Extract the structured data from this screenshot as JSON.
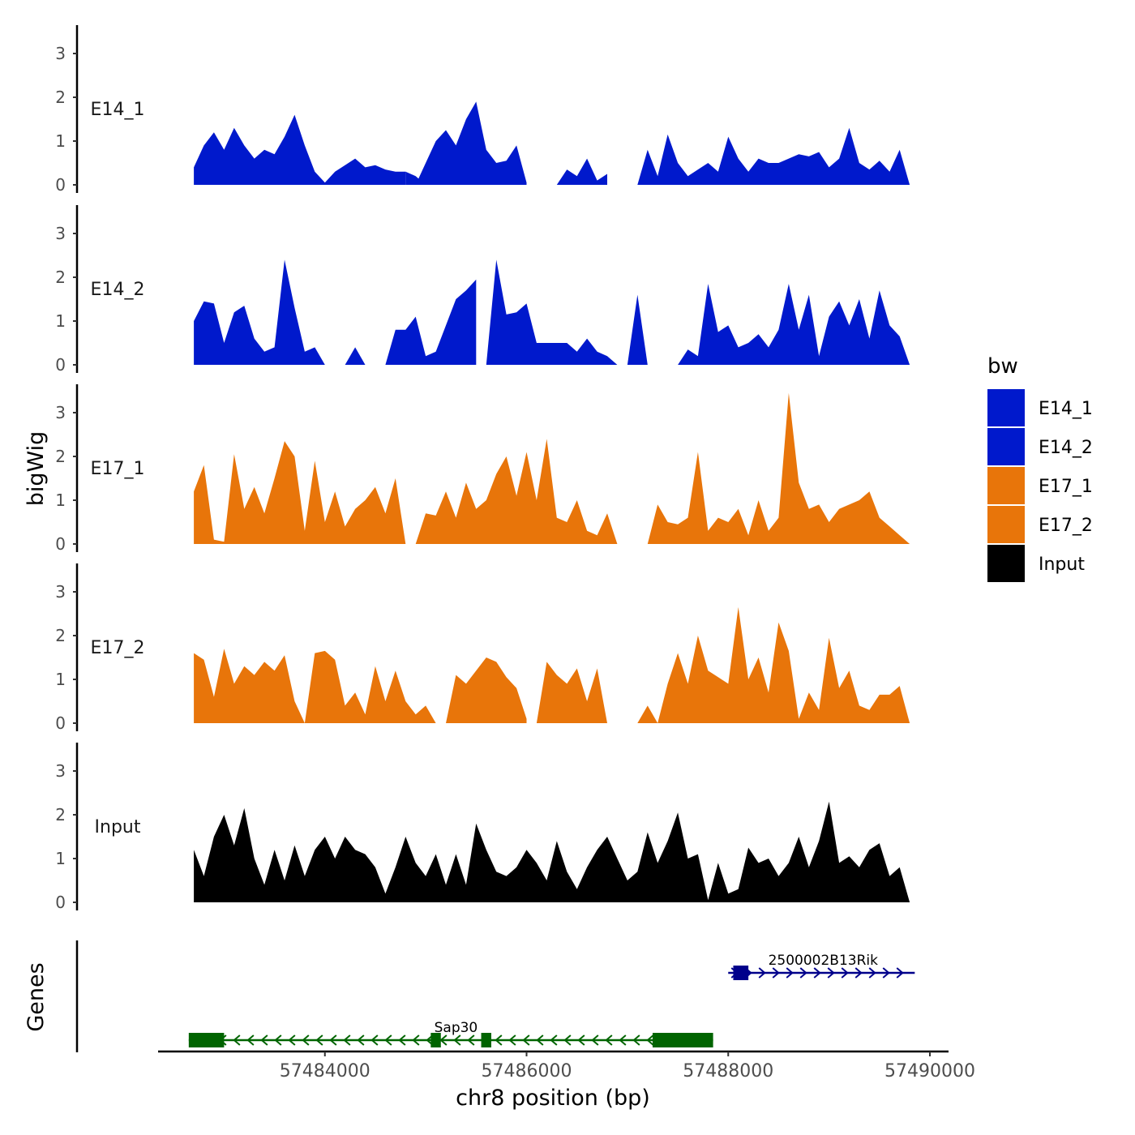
{
  "chart_data": {
    "type": "area",
    "chromosome": "chr8",
    "xlabel": "chr8 position (bp)",
    "ylabel": "bigWig",
    "genes_label": "Genes",
    "xlim": [
      57482400,
      57490300
    ],
    "x_ticks": [
      57484000,
      57486000,
      57488000,
      57490000
    ],
    "x_tick_labels": [
      "57484000",
      "57486000",
      "57488000",
      "57490000"
    ],
    "y_ticks": [
      0,
      1,
      2,
      3
    ],
    "y_tick_labels": [
      "0",
      "1",
      "2",
      "3"
    ],
    "ylim": [
      0,
      3.6
    ],
    "legend": {
      "title": "bw",
      "position": "right",
      "entries": [
        {
          "label": "E14_1",
          "color": "#0019CC"
        },
        {
          "label": "E14_2",
          "color": "#0019CC"
        },
        {
          "label": "E17_1",
          "color": "#E8750A"
        },
        {
          "label": "E17_2",
          "color": "#E8750A"
        },
        {
          "label": "Input",
          "color": "#000000"
        }
      ]
    },
    "series": [
      {
        "name": "E14_1",
        "color": "#0019CC",
        "segments": [
          {
            "x": [
              57482700,
              57482800,
              57482900,
              57483000,
              57483100,
              57483200,
              57483300,
              57483400,
              57483500,
              57483600,
              57483700,
              57483800,
              57483900,
              57484000,
              57484100,
              57484200,
              57484300,
              57484400,
              57484500,
              57484600,
              57484700,
              57484800
            ],
            "y": [
              0.4,
              0.9,
              1.2,
              0.8,
              1.3,
              0.9,
              0.6,
              0.8,
              0.7,
              1.1,
              1.6,
              0.9,
              0.3,
              0.05,
              0.3,
              0.45,
              0.6,
              0.4,
              0.45,
              0.35,
              0.3,
              0.3
            ]
          },
          {
            "x": [
              57484800,
              57484900,
              57485000,
              57485100,
              57485200,
              57485300,
              57485400,
              57485500,
              57485600,
              57485700,
              57485800,
              57485900,
              57486000
            ],
            "y": [
              0.3,
              0.2,
              0.0,
              0.0,
              0.0,
              0.0,
              0.0,
              0.0,
              0.0,
              0.0,
              0.0,
              0.0,
              0.0
            ]
          },
          {
            "x": [
              57484900,
              57485000,
              57485100,
              57485200,
              57485300,
              57485400,
              57485500,
              57485600,
              57485700,
              57485800,
              57485900,
              57486000
            ],
            "y": [
              0.0,
              0.5,
              1.0,
              1.25,
              0.9,
              1.5,
              1.9,
              0.8,
              0.5,
              0.55,
              0.9,
              0.05
            ]
          },
          {
            "x": [
              57486300,
              57486400,
              57486500,
              57486600,
              57486700,
              57486800
            ],
            "y": [
              0.0,
              0.35,
              0.2,
              0.6,
              0.1,
              0.25
            ]
          },
          {
            "x": [
              57487100,
              57487200,
              57487300,
              57487400,
              57487500,
              57487600,
              57487700,
              57487800,
              57487900,
              57488000,
              57488100,
              57488200,
              57488300,
              57488400,
              57488500,
              57488600,
              57488700,
              57488800,
              57488900,
              57489000,
              57489100,
              57489200,
              57489300,
              57489400,
              57489500,
              57489600,
              57489700,
              57489800
            ],
            "y": [
              0.0,
              0.8,
              0.2,
              1.15,
              0.5,
              0.2,
              0.35,
              0.5,
              0.3,
              1.1,
              0.6,
              0.3,
              0.6,
              0.5,
              0.5,
              0.6,
              0.7,
              0.65,
              0.75,
              0.4,
              0.6,
              1.3,
              0.5,
              0.35,
              0.55,
              0.3,
              0.8,
              0.0
            ]
          }
        ]
      },
      {
        "name": "E14_2",
        "color": "#0019CC",
        "segments": [
          {
            "x": [
              57482700,
              57482800,
              57482900,
              57483000,
              57483100,
              57483200,
              57483300,
              57483400,
              57483500,
              57483600,
              57483700,
              57483800,
              57483900,
              57484000
            ],
            "y": [
              1.0,
              1.45,
              1.4,
              0.5,
              1.2,
              1.35,
              0.6,
              0.3,
              0.4,
              2.4,
              1.3,
              0.3,
              0.4,
              0.0
            ]
          },
          {
            "x": [
              57484200,
              57484300,
              57484400
            ],
            "y": [
              0.0,
              0.4,
              0.0
            ]
          },
          {
            "x": [
              57484600,
              57484700,
              57484800,
              57484900,
              57485000,
              57485100,
              57485200,
              57485300,
              57485400,
              57485500
            ],
            "y": [
              0.0,
              0.8,
              0.8,
              1.1,
              0.2,
              0.3,
              0.9,
              1.5,
              1.7,
              1.95
            ]
          },
          {
            "x": [
              57485600,
              57485700,
              57485800,
              57485900,
              57486000,
              57486100,
              57486200,
              57486300,
              57486400,
              57486500,
              57486600,
              57486700,
              57486800,
              57486900
            ],
            "y": [
              0.0,
              2.4,
              1.15,
              1.2,
              1.4,
              0.5,
              0.5,
              0.5,
              0.5,
              0.3,
              0.6,
              0.3,
              0.2,
              0.0
            ]
          },
          {
            "x": [
              57487000,
              57487100,
              57487200
            ],
            "y": [
              0.0,
              1.6,
              0.0
            ]
          },
          {
            "x": [
              57487500,
              57487600,
              57487700,
              57487800,
              57487900,
              57488000,
              57488100,
              57488200,
              57488300,
              57488400,
              57488500,
              57488600,
              57488700,
              57488800,
              57488900,
              57489000,
              57489100,
              57489200,
              57489300,
              57489400,
              57489500,
              57489600,
              57489700,
              57489800
            ],
            "y": [
              0.0,
              0.35,
              0.2,
              1.85,
              0.75,
              0.9,
              0.4,
              0.5,
              0.7,
              0.4,
              0.8,
              1.85,
              0.8,
              1.6,
              0.2,
              1.1,
              1.45,
              0.9,
              1.5,
              0.6,
              1.7,
              0.9,
              0.65,
              0.0
            ]
          }
        ]
      },
      {
        "name": "E17_1",
        "color": "#E8750A",
        "segments": [
          {
            "x": [
              57482700,
              57482800,
              57482900,
              57483000,
              57483100,
              57483200,
              57483300,
              57483400,
              57483500,
              57483600,
              57483700,
              57483800,
              57483900,
              57484000,
              57484100,
              57484200,
              57484300,
              57484400,
              57484500,
              57484600,
              57484700,
              57484800
            ],
            "y": [
              1.2,
              1.8,
              0.1,
              0.05,
              2.05,
              0.8,
              1.3,
              0.7,
              1.5,
              2.35,
              2.0,
              0.3,
              1.9,
              0.5,
              1.2,
              0.4,
              0.8,
              1.0,
              1.3,
              0.7,
              1.5,
              0.0
            ]
          },
          {
            "x": [
              57484900,
              57485000,
              57485100,
              57485200,
              57485300,
              57485400,
              57485500,
              57485600,
              57485700,
              57485800,
              57485900,
              57486000,
              57486100,
              57486200,
              57486300,
              57486400,
              57486500,
              57486600,
              57486700,
              57486800,
              57486900
            ],
            "y": [
              0.0,
              0.7,
              0.65,
              1.2,
              0.6,
              1.4,
              0.8,
              1.0,
              1.6,
              2.0,
              1.1,
              2.1,
              1.0,
              2.4,
              0.6,
              0.5,
              1.0,
              0.3,
              0.2,
              0.7,
              0.0
            ]
          },
          {
            "x": [
              57487200,
              57487300,
              57487400,
              57487500,
              57487600,
              57487700,
              57487800,
              57487900,
              57488000,
              57488100,
              57488200,
              57488300,
              57488400,
              57488500,
              57488600,
              57488700,
              57488800,
              57488900,
              57489000,
              57489100,
              57489200,
              57489300,
              57489400,
              57489500,
              57489600,
              57489700,
              57489800
            ],
            "y": [
              0.0,
              0.9,
              0.5,
              0.45,
              0.6,
              2.1,
              0.3,
              0.6,
              0.5,
              0.8,
              0.2,
              1.0,
              0.3,
              0.6,
              3.45,
              1.4,
              0.8,
              0.9,
              0.5,
              0.8,
              0.9,
              1.0,
              1.2,
              0.6,
              0.4,
              0.2,
              0.0
            ]
          }
        ]
      },
      {
        "name": "E17_2",
        "color": "#E8750A",
        "segments": [
          {
            "x": [
              57482700,
              57482800,
              57482900,
              57483000,
              57483100,
              57483200,
              57483300,
              57483400,
              57483500,
              57483600,
              57483700,
              57483800
            ],
            "y": [
              1.6,
              1.45,
              0.6,
              1.7,
              0.9,
              1.3,
              1.1,
              1.4,
              1.2,
              1.55,
              0.5,
              0.0
            ]
          },
          {
            "x": [
              57483800,
              57483900,
              57484000,
              57484100,
              57484200,
              57484300,
              57484400,
              57484500,
              57484600,
              57484700,
              57484800,
              57484900,
              57485000,
              57485100
            ],
            "y": [
              0.0,
              1.6,
              1.65,
              1.45,
              0.4,
              0.7,
              0.2,
              1.3,
              0.5,
              1.2,
              0.5,
              0.2,
              0.4,
              0.0
            ]
          },
          {
            "x": [
              57485200,
              57485300,
              57485400,
              57485500,
              57485600,
              57485700,
              57485800,
              57485900,
              57486000
            ],
            "y": [
              0.0,
              1.1,
              0.9,
              1.2,
              1.5,
              1.4,
              1.05,
              0.8,
              0.1
            ]
          },
          {
            "x": [
              57486100,
              57486200,
              57486300,
              57486400,
              57486500,
              57486600,
              57486700,
              57486800
            ],
            "y": [
              0.0,
              1.4,
              1.1,
              0.9,
              1.25,
              0.5,
              1.25,
              0.0
            ]
          },
          {
            "x": [
              57487100,
              57487200,
              57487300
            ],
            "y": [
              0.0,
              0.4,
              0.0
            ]
          },
          {
            "x": [
              57487300,
              57487400,
              57487500,
              57487600,
              57487700,
              57487800,
              57487900,
              57488000,
              57488100,
              57488200,
              57488300,
              57488400,
              57488500,
              57488600,
              57488700,
              57488800,
              57488900,
              57489000,
              57489100,
              57489200,
              57489300,
              57489400,
              57489500,
              57489600,
              57489700,
              57489800
            ],
            "y": [
              0.0,
              0.9,
              1.6,
              0.9,
              2.0,
              1.2,
              1.05,
              0.9,
              2.65,
              1.0,
              1.5,
              0.7,
              2.3,
              1.65,
              0.1,
              0.7,
              0.3,
              1.95,
              0.8,
              1.2,
              0.4,
              0.3,
              0.65,
              0.65,
              0.85,
              0.0
            ]
          }
        ]
      },
      {
        "name": "Input",
        "color": "#000000",
        "segments": [
          {
            "x": [
              57482700,
              57482800,
              57482900,
              57483000,
              57483100,
              57483200,
              57483300,
              57483400,
              57483500,
              57483600,
              57483700,
              57483800,
              57483900,
              57484000,
              57484100,
              57484200,
              57484300,
              57484400,
              57484500,
              57484600,
              57484700,
              57484800,
              57484900,
              57485000,
              57485100,
              57485200,
              57485300,
              57485400,
              57485500,
              57485600,
              57485700,
              57485800,
              57485900,
              57486000,
              57486100,
              57486200,
              57486300,
              57486400,
              57486500,
              57486600,
              57486700,
              57486800,
              57486900,
              57487000,
              57487100,
              57487200,
              57487300,
              57487400,
              57487500,
              57487600,
              57487700,
              57487800,
              57487900,
              57488000,
              57488100,
              57488200,
              57488300,
              57488400,
              57488500,
              57488600,
              57488700,
              57488800,
              57488900,
              57489000,
              57489100,
              57489200,
              57489300,
              57489400,
              57489500,
              57489600,
              57489700,
              57489800
            ],
            "y": [
              1.2,
              0.6,
              1.5,
              2.0,
              1.3,
              2.15,
              1.0,
              0.4,
              1.2,
              0.5,
              1.3,
              0.6,
              1.2,
              1.5,
              1.0,
              1.5,
              1.2,
              1.1,
              0.8,
              0.2,
              0.8,
              1.5,
              0.9,
              0.6,
              1.1,
              0.4,
              1.1,
              0.4,
              1.8,
              1.2,
              0.7,
              0.6,
              0.8,
              1.2,
              0.9,
              0.5,
              1.4,
              0.7,
              0.3,
              0.8,
              1.2,
              1.5,
              1.0,
              0.5,
              0.7,
              1.6,
              0.9,
              1.4,
              2.05,
              1.0,
              1.1,
              0.05,
              0.9,
              0.2,
              0.3,
              1.25,
              0.9,
              1.0,
              0.6,
              0.9,
              1.5,
              0.8,
              1.4,
              2.3,
              0.9,
              1.05,
              0.8,
              1.2,
              1.35,
              0.6,
              0.8,
              0.0
            ]
          }
        ]
      }
    ],
    "genes": [
      {
        "name": "2500002B13Rik",
        "strand": "+",
        "color": "#00008B",
        "start": 57488000,
        "end": 57489850,
        "exons": [
          [
            57488050,
            57488200
          ]
        ]
      },
      {
        "name": "Sap30",
        "strand": "-",
        "color": "#006400",
        "start": 57482650,
        "end": 57487850,
        "exons": [
          [
            57482650,
            57483000
          ],
          [
            57485050,
            57485150
          ],
          [
            57485550,
            57485650
          ],
          [
            57487250,
            57487850
          ]
        ]
      }
    ]
  }
}
